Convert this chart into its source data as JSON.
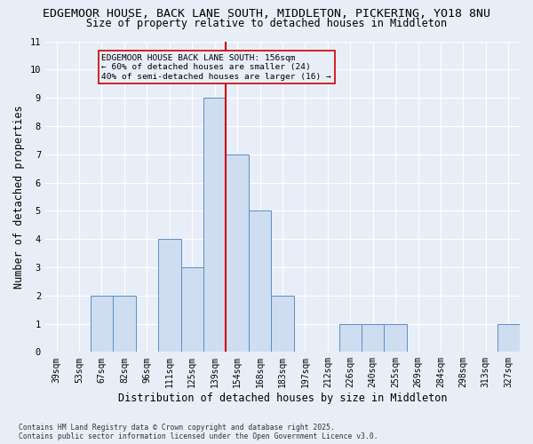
{
  "title_line1": "EDGEMOOR HOUSE, BACK LANE SOUTH, MIDDLETON, PICKERING, YO18 8NU",
  "title_line2": "Size of property relative to detached houses in Middleton",
  "xlabel": "Distribution of detached houses by size in Middleton",
  "ylabel": "Number of detached properties",
  "categories": [
    "39sqm",
    "53sqm",
    "67sqm",
    "82sqm",
    "96sqm",
    "111sqm",
    "125sqm",
    "139sqm",
    "154sqm",
    "168sqm",
    "183sqm",
    "197sqm",
    "212sqm",
    "226sqm",
    "240sqm",
    "255sqm",
    "269sqm",
    "284sqm",
    "298sqm",
    "313sqm",
    "327sqm"
  ],
  "values": [
    0,
    0,
    2,
    2,
    0,
    4,
    3,
    9,
    7,
    5,
    2,
    0,
    0,
    1,
    1,
    1,
    0,
    0,
    0,
    0,
    1
  ],
  "bar_color": "#cfddf0",
  "bar_edge_color": "#5b8dc8",
  "ref_line_color": "#cc0000",
  "ref_line_x": 8,
  "annotation_text": "EDGEMOOR HOUSE BACK LANE SOUTH: 156sqm\n← 60% of detached houses are smaller (24)\n40% of semi-detached houses are larger (16) →",
  "annotation_box_edge": "#cc0000",
  "ylim": [
    0,
    11
  ],
  "yticks": [
    0,
    1,
    2,
    3,
    4,
    5,
    6,
    7,
    8,
    9,
    10,
    11
  ],
  "footnote": "Contains HM Land Registry data © Crown copyright and database right 2025.\nContains public sector information licensed under the Open Government Licence v3.0.",
  "bg_color": "#e8eef8",
  "grid_color": "#ffffff",
  "title_fontsize": 9.5,
  "subtitle_fontsize": 8.5,
  "label_fontsize": 8.5,
  "tick_fontsize": 7,
  "annot_fontsize": 6.8,
  "footnote_fontsize": 5.8
}
